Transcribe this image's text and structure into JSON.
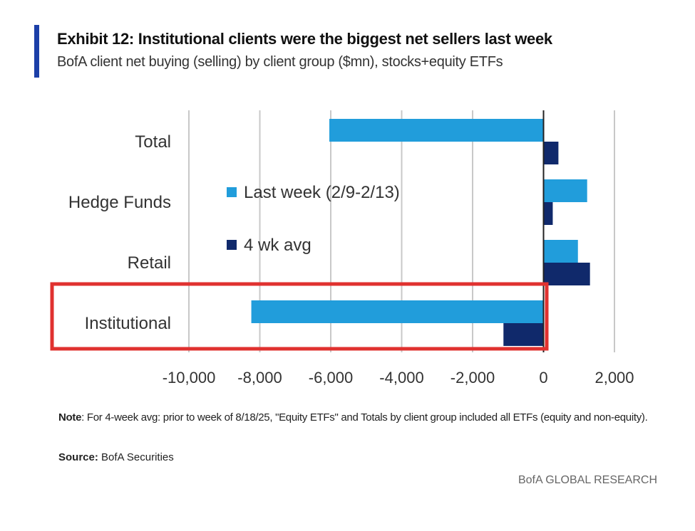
{
  "header": {
    "title": "Exhibit 12: Institutional clients were the biggest net sellers last week",
    "subtitle": "BofA client net buying (selling) by client group ($mn), stocks+equity ETFs"
  },
  "chart_data": {
    "type": "bar",
    "orientation": "horizontal",
    "categories": [
      "Total",
      "Hedge Funds",
      "Retail",
      "Institutional"
    ],
    "series": [
      {
        "name": "Last week (2/9-2/13)",
        "color": "#219ddb",
        "values": [
          -6040,
          1230,
          970,
          -8240
        ]
      },
      {
        "name": "4 wk avg",
        "color": "#10296b",
        "values": [
          420,
          260,
          1310,
          -1130
        ]
      }
    ],
    "xlim": [
      -10000,
      2000
    ],
    "xticks": [
      -10000,
      -8000,
      -6000,
      -4000,
      -2000,
      0,
      2000
    ],
    "xtick_labels": [
      "-10,000",
      "-8,000",
      "-6,000",
      "-4,000",
      "-2,000",
      "0",
      "2,000"
    ],
    "grid": "vertical",
    "legend_placement": "center-left",
    "highlight": {
      "category": "Institutional",
      "color": "#e0312f"
    }
  },
  "note": {
    "label": "Note",
    "text": ": For 4-week avg: prior to week of 8/18/25, \"Equity ETFs\" and Totals by client group included all ETFs (equity and non-equity)."
  },
  "source": {
    "label": "Source:",
    "text": " BofA Securities"
  },
  "footer": "BofA GLOBAL RESEARCH"
}
